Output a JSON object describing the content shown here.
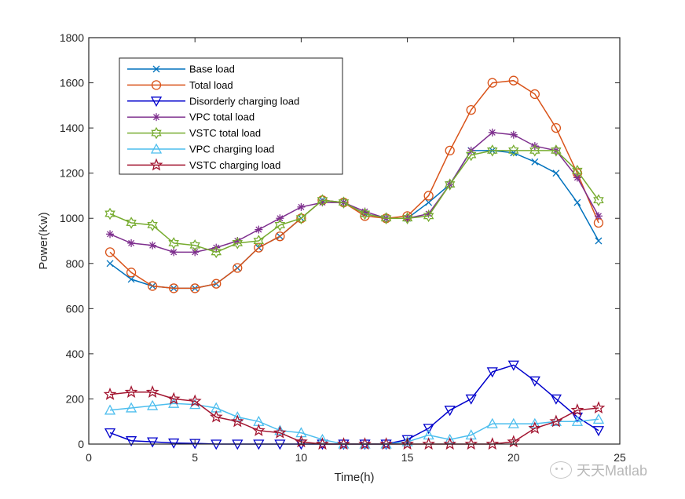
{
  "chart_data": {
    "type": "line",
    "title": "",
    "xlabel": "Time(h)",
    "ylabel": "Power(Kw)",
    "xlim": [
      0,
      25
    ],
    "ylim": [
      0,
      1800
    ],
    "xticks": [
      "0",
      "5",
      "10",
      "15",
      "20",
      "25"
    ],
    "yticks": [
      "0",
      "200",
      "400",
      "600",
      "800",
      "1000",
      "1200",
      "1400",
      "1600",
      "1800"
    ],
    "grid": false,
    "legend_position": "top-left",
    "x": [
      1,
      2,
      3,
      4,
      5,
      6,
      7,
      8,
      9,
      10,
      11,
      12,
      13,
      14,
      15,
      16,
      17,
      18,
      19,
      20,
      21,
      22,
      23,
      24
    ],
    "series": [
      {
        "name": "Base load",
        "color": "#0072BD",
        "marker": "x",
        "values": [
          800,
          730,
          700,
          690,
          690,
          710,
          780,
          870,
          920,
          1000,
          1080,
          1070,
          1020,
          1000,
          1000,
          1070,
          1150,
          1300,
          1300,
          1290,
          1250,
          1200,
          1070,
          900
        ]
      },
      {
        "name": "Total load",
        "color": "#D95319",
        "marker": "o",
        "values": [
          850,
          760,
          700,
          690,
          690,
          710,
          780,
          870,
          920,
          1000,
          1080,
          1070,
          1010,
          1000,
          1010,
          1100,
          1300,
          1480,
          1600,
          1610,
          1550,
          1400,
          1200,
          980
        ]
      },
      {
        "name": "Disorderly charging load",
        "color": "#0000CC",
        "marker": "v",
        "values": [
          50,
          15,
          10,
          5,
          3,
          0,
          0,
          0,
          0,
          0,
          0,
          0,
          0,
          0,
          20,
          70,
          150,
          200,
          320,
          350,
          280,
          200,
          120,
          60
        ]
      },
      {
        "name": "VPC total load",
        "color": "#7E2F8E",
        "marker": "*",
        "values": [
          930,
          890,
          880,
          850,
          850,
          870,
          900,
          950,
          1000,
          1050,
          1070,
          1070,
          1030,
          1000,
          1000,
          1020,
          1150,
          1300,
          1380,
          1370,
          1320,
          1300,
          1180,
          1010
        ]
      },
      {
        "name": "VSTC total load",
        "color": "#77AC30",
        "marker": "hexagram",
        "values": [
          1020,
          980,
          970,
          890,
          880,
          850,
          890,
          900,
          970,
          1000,
          1080,
          1070,
          1020,
          1000,
          1000,
          1010,
          1150,
          1280,
          1300,
          1300,
          1300,
          1300,
          1210,
          1080
        ]
      },
      {
        "name": "VPC charging load",
        "color": "#4DBEEE",
        "marker": "^",
        "values": [
          150,
          160,
          170,
          180,
          175,
          160,
          120,
          100,
          60,
          50,
          20,
          0,
          0,
          0,
          10,
          40,
          20,
          40,
          90,
          90,
          90,
          100,
          100,
          110
        ]
      },
      {
        "name": "VSTC charging load",
        "color": "#A2142F",
        "marker": "pentagram",
        "values": [
          220,
          230,
          230,
          200,
          190,
          120,
          100,
          60,
          50,
          10,
          0,
          0,
          0,
          0,
          0,
          0,
          0,
          0,
          0,
          10,
          70,
          100,
          150,
          160
        ]
      }
    ]
  },
  "watermark": {
    "text": "天天Matlab",
    "icon": "wechat-icon"
  }
}
